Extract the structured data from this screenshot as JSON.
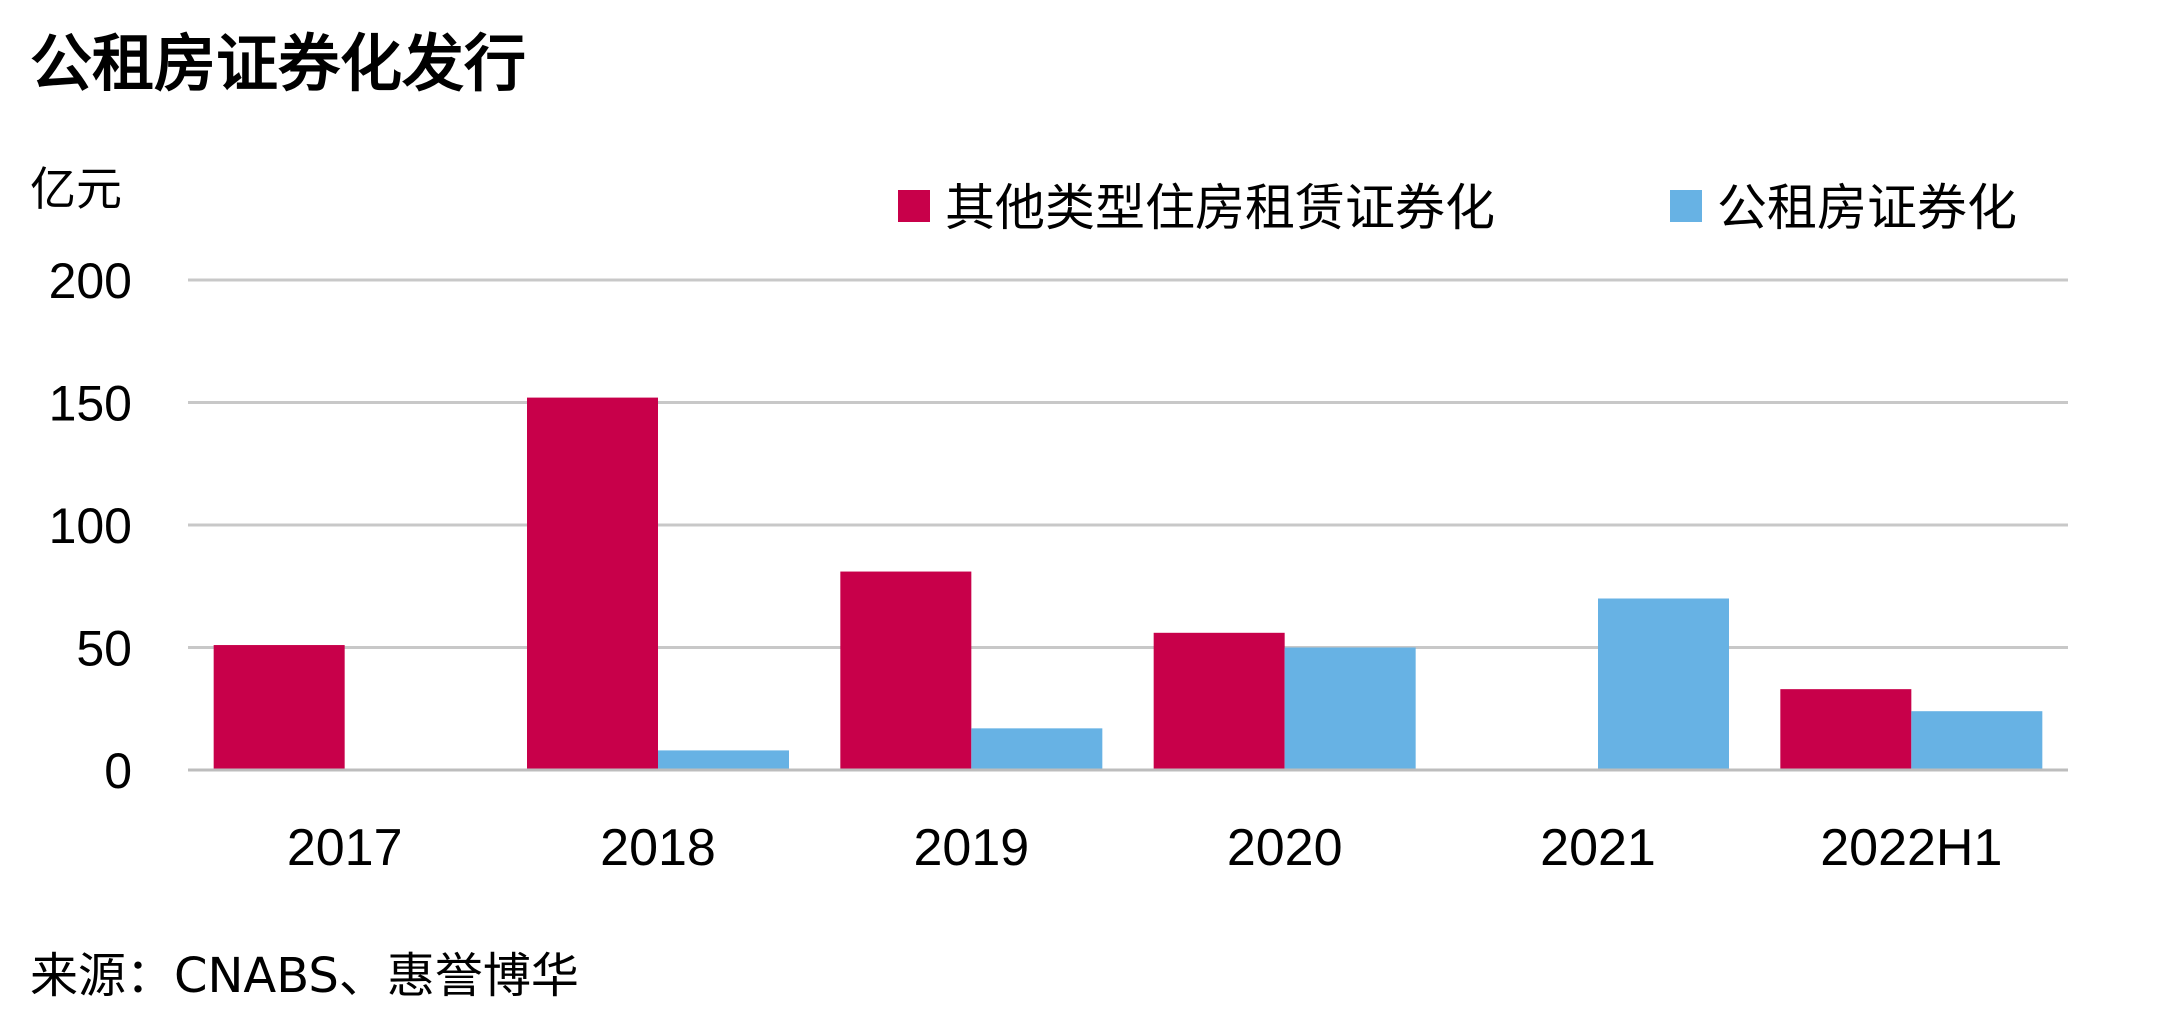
{
  "chart_data": {
    "type": "bar",
    "title": "公租房证券化发行",
    "ylabel": "亿元",
    "xlabel": "",
    "categories": [
      "2017",
      "2018",
      "2019",
      "2020",
      "2021",
      "2022H1"
    ],
    "series": [
      {
        "name": "其他类型住房租赁证券化",
        "color": "#C8004A",
        "values": [
          51,
          152,
          81,
          56,
          0,
          33
        ]
      },
      {
        "name": "公租房证券化",
        "color": "#67B2E4",
        "values": [
          0,
          8,
          17,
          50,
          70,
          24
        ]
      }
    ],
    "ylim": [
      0,
      200
    ],
    "yticks": [
      "0",
      "50",
      "100",
      "150",
      "200"
    ],
    "grid": true,
    "legend_position": "top-right",
    "source": "来源：CNABS、惠誉博华"
  }
}
